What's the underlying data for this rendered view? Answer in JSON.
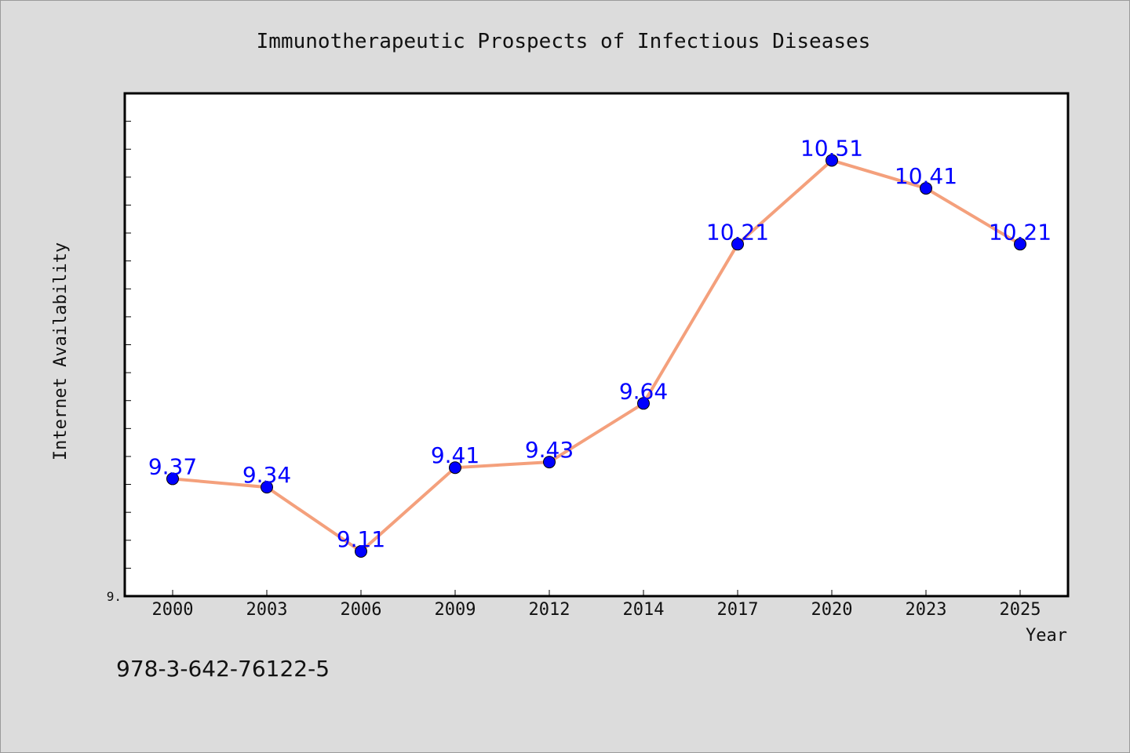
{
  "chart_data": {
    "type": "line",
    "title": "Immunotherapeutic Prospects of Infectious Diseases",
    "xlabel": "Year",
    "ylabel": "Internet Availability",
    "categories": [
      "2000",
      "2003",
      "2006",
      "2009",
      "2012",
      "2014",
      "2017",
      "2020",
      "2023",
      "2025"
    ],
    "series": [
      {
        "values": [
          9.37,
          9.34,
          9.11,
          9.41,
          9.43,
          9.64,
          10.21,
          10.51,
          10.41,
          10.21
        ],
        "labels": [
          "9.37",
          "9.34",
          "9.11",
          "9.41",
          "9.43",
          "9.64",
          "10.21",
          "10.51",
          "10.41",
          "10.21"
        ]
      }
    ],
    "ylim": [
      8.95,
      10.75
    ],
    "ytick_labels": [
      {
        "value": 8.95,
        "text": "9."
      }
    ],
    "grid": false,
    "colors": {
      "line": "#f4a07c",
      "marker": "#0000ff",
      "data_label": "#0000ff",
      "plot_background": "#ffffff",
      "figure_background": "#dcdcdc"
    }
  },
  "footer": {
    "isbn": "978-3-642-76122-5"
  }
}
